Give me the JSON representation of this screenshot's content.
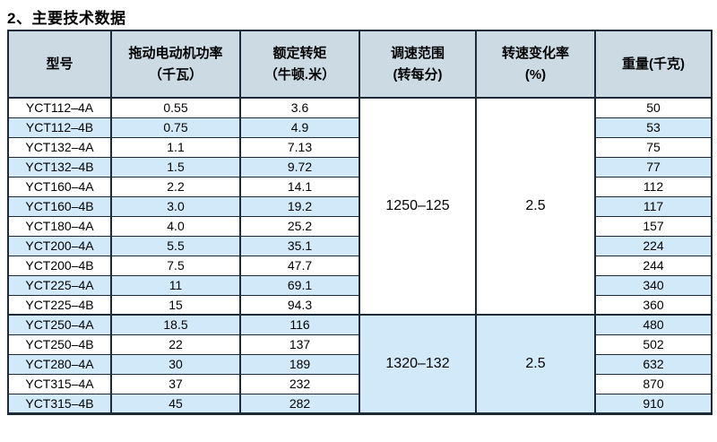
{
  "page_title": "2、主要技术数据",
  "colors": {
    "border": "#1c2a3a",
    "header_bg": "#ccdae4",
    "alt_row_bg": "#d2e9f9"
  },
  "table": {
    "headers": [
      {
        "key": "model",
        "line1": "型号",
        "line2": ""
      },
      {
        "key": "power",
        "line1": "拖动电动机功率",
        "line2": "（千瓦）"
      },
      {
        "key": "torque",
        "line1": "额定转矩",
        "line2": "（牛顿.米）"
      },
      {
        "key": "speed-range",
        "line1": "调速范围",
        "line2": "(转每分)"
      },
      {
        "key": "speed-variation",
        "line1": "转速变化率",
        "line2": "(%)"
      },
      {
        "key": "weight",
        "line1": "重量(千克)",
        "line2": ""
      }
    ],
    "groups": [
      {
        "speed_range": "1250–125",
        "speed_variation": "2.5",
        "rows": [
          {
            "model": "YCT112–4A",
            "power": "0.55",
            "torque": "3.6",
            "weight": "50"
          },
          {
            "model": "YCT112–4B",
            "power": "0.75",
            "torque": "4.9",
            "weight": "53"
          },
          {
            "model": "YCT132–4A",
            "power": "1.1",
            "torque": "7.13",
            "weight": "75"
          },
          {
            "model": "YCT132–4B",
            "power": "1.5",
            "torque": "9.72",
            "weight": "77"
          },
          {
            "model": "YCT160–4A",
            "power": "2.2",
            "torque": "14.1",
            "weight": "112"
          },
          {
            "model": "YCT160–4B",
            "power": "3.0",
            "torque": "19.2",
            "weight": "117"
          },
          {
            "model": "YCT180–4A",
            "power": "4.0",
            "torque": "25.2",
            "weight": "157"
          },
          {
            "model": "YCT200–4A",
            "power": "5.5",
            "torque": "35.1",
            "weight": "224"
          },
          {
            "model": "YCT200–4B",
            "power": "7.5",
            "torque": "47.7",
            "weight": "244"
          },
          {
            "model": "YCT225–4A",
            "power": "11",
            "torque": "69.1",
            "weight": "340"
          },
          {
            "model": "YCT225–4B",
            "power": "15",
            "torque": "94.3",
            "weight": "360"
          }
        ]
      },
      {
        "speed_range": "1320–132",
        "speed_variation": "2.5",
        "rows": [
          {
            "model": "YCT250–4A",
            "power": "18.5",
            "torque": "116",
            "weight": "480"
          },
          {
            "model": "YCT250–4B",
            "power": "22",
            "torque": "137",
            "weight": "502"
          },
          {
            "model": "YCT280–4A",
            "power": "30",
            "torque": "189",
            "weight": "632"
          },
          {
            "model": "YCT315–4A",
            "power": "37",
            "torque": "232",
            "weight": "870"
          },
          {
            "model": "YCT315–4B",
            "power": "45",
            "torque": "282",
            "weight": "910"
          }
        ]
      }
    ]
  }
}
